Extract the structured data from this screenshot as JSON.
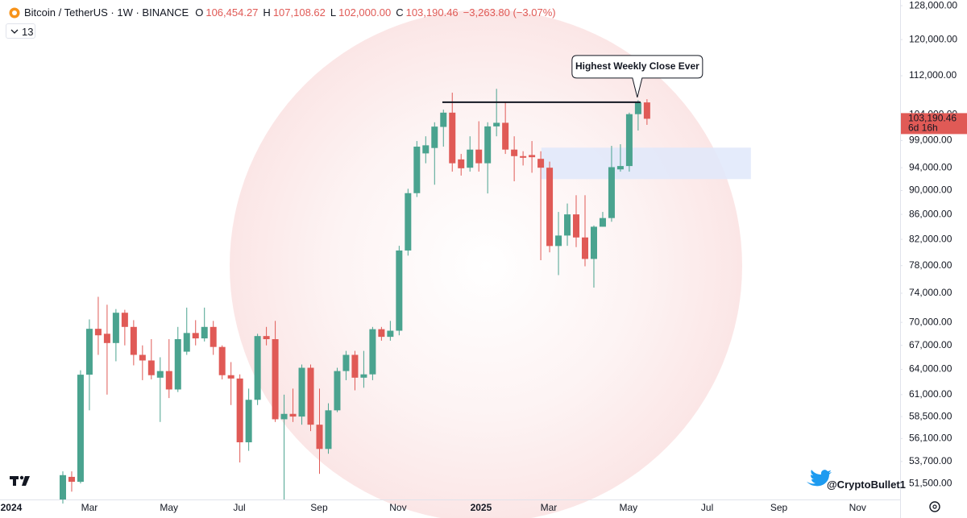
{
  "chart_data": {
    "type": "candlestick",
    "symbol_label": "Bitcoin / TetherUS · 1W · BINANCE",
    "ohlc_labels": [
      {
        "key": "O",
        "value": "106,454.27"
      },
      {
        "key": "H",
        "value": "107,108.62"
      },
      {
        "key": "L",
        "value": "102,000.00"
      },
      {
        "key": "C",
        "value": "103,190.46"
      }
    ],
    "change_label": "−3,263.80 (−3.07%)",
    "indicators_count": 13,
    "up_color": "#4aa38f",
    "down_color": "#e05a56",
    "open": [
      49950,
      52150,
      51660,
      63360,
      69150,
      68500,
      67300,
      71300,
      69400,
      65800,
      65100,
      63000,
      63800,
      61600,
      66200,
      68600,
      67900,
      69400,
      66800,
      63300,
      62900,
      55700,
      60400,
      68200,
      67800,
      58200,
      58800,
      58500,
      64200,
      57600,
      55000,
      59200,
      63800,
      65800,
      63000,
      63400,
      69100,
      68100,
      68900,
      80280,
      89550,
      96600,
      97600,
      101600,
      104400,
      95500,
      94000,
      97300,
      94800,
      101700,
      102400,
      97300,
      96100,
      96300,
      95600,
      94000,
      80970,
      82600,
      86000,
      82300,
      79000,
      84000,
      85400,
      93700,
      94300,
      104100,
      106454.27
    ],
    "high": [
      52700,
      52700,
      63900,
      70400,
      73500,
      72400,
      71800,
      71700,
      70300,
      67000,
      67800,
      65500,
      67800,
      69400,
      72000,
      70300,
      72000,
      70200,
      67000,
      64900,
      63400,
      61700,
      68500,
      69400,
      70200,
      61000,
      61700,
      64600,
      64600,
      61700,
      60000,
      64200,
      66300,
      66300,
      66300,
      69400,
      69400,
      70200,
      81000,
      90300,
      98900,
      99800,
      102500,
      105000,
      108450,
      96500,
      99800,
      102700,
      102500,
      109250,
      106400,
      99800,
      97000,
      98900,
      97000,
      95100,
      86400,
      87800,
      89200,
      89200,
      84200,
      86400,
      98000,
      98300,
      104400,
      106900,
      107108.62
    ],
    "low": [
      49560,
      50700,
      51500,
      59200,
      65800,
      61000,
      65000,
      67000,
      64500,
      62700,
      62800,
      57900,
      60600,
      61300,
      65800,
      67000,
      67500,
      65800,
      62800,
      59800,
      53600,
      54800,
      59800,
      67000,
      57900,
      49950,
      57900,
      57600,
      56900,
      52450,
      54500,
      59000,
      62700,
      61500,
      61800,
      62700,
      67600,
      67600,
      68300,
      79500,
      88900,
      94800,
      91000,
      97850,
      93300,
      92600,
      93300,
      93300,
      89500,
      99800,
      96500,
      91600,
      94400,
      93100,
      78800,
      80000,
      76600,
      81000,
      80800,
      77900,
      74800,
      84000,
      84800,
      93300,
      93300,
      100900,
      102000
    ],
    "close": [
      52320,
      51660,
      63360,
      69150,
      68300,
      67300,
      71300,
      69400,
      65800,
      65100,
      63300,
      63800,
      61600,
      67800,
      68600,
      67900,
      69400,
      66800,
      63300,
      62900,
      55700,
      60400,
      68200,
      67800,
      58200,
      58800,
      58500,
      64200,
      57600,
      55000,
      59200,
      63800,
      65800,
      63000,
      63400,
      69100,
      68100,
      68900,
      80280,
      89550,
      97850,
      98100,
      101660,
      104400,
      94800,
      93900,
      97300,
      94800,
      101700,
      102400,
      97300,
      96100,
      95800,
      95900,
      94000,
      80970,
      82600,
      86000,
      82300,
      79000,
      84000,
      85400,
      94100,
      94300,
      104100,
      106450,
      103190.46
    ],
    "yscale": "log",
    "ylim": [
      49950,
      129400
    ],
    "yticks": [
      {
        "value": 51500,
        "label": "51,500.00"
      },
      {
        "value": 53700,
        "label": "53,700.00"
      },
      {
        "value": 56100,
        "label": "56,100.00"
      },
      {
        "value": 58500,
        "label": "58,500.00"
      },
      {
        "value": 61000,
        "label": "61,000.00"
      },
      {
        "value": 64000,
        "label": "64,000.00"
      },
      {
        "value": 67000,
        "label": "67,000.00"
      },
      {
        "value": 70000,
        "label": "70,000.00"
      },
      {
        "value": 74000,
        "label": "74,000.00"
      },
      {
        "value": 78000,
        "label": "78,000.00"
      },
      {
        "value": 82000,
        "label": "82,000.00"
      },
      {
        "value": 86000,
        "label": "86,000.00"
      },
      {
        "value": 90000,
        "label": "90,000.00"
      },
      {
        "value": 94000,
        "label": "94,000.00"
      },
      {
        "value": 99000,
        "label": "99,000.00"
      },
      {
        "value": 104000,
        "label": "104,000.00"
      },
      {
        "value": 112000,
        "label": "112,000.00"
      },
      {
        "value": 120000,
        "label": "120,000.00"
      },
      {
        "value": 128000,
        "label": "128,000.00"
      }
    ],
    "xlim": [
      -7.1,
      94.6
    ],
    "xticks": [
      {
        "value": -5.83,
        "label": "2024"
      },
      {
        "value": 3.0,
        "label": "Mar"
      },
      {
        "value": 11.99,
        "label": "May"
      },
      {
        "value": 19.94,
        "label": "Jul"
      },
      {
        "value": 28.95,
        "label": "Sep"
      },
      {
        "value": 37.87,
        "label": "Nov"
      },
      {
        "value": 47.25,
        "label": "2025"
      },
      {
        "value": 54.9,
        "label": "Mar"
      },
      {
        "value": 63.9,
        "label": "May"
      },
      {
        "value": 72.8,
        "label": "Jul"
      },
      {
        "value": 80.9,
        "label": "Sep"
      },
      {
        "value": 89.8,
        "label": "Nov"
      }
    ],
    "bold_xticks": [
      0,
      6
    ],
    "grid": false,
    "zone": {
      "low": 91980,
      "high": 97660,
      "x": [
        54.07,
        77.74
      ],
      "color": "#dfe8fa"
    },
    "level": {
      "value": 106500,
      "x": [
        42.88,
        65.27
      ],
      "color": "#131722"
    },
    "annotation": "Highest Weekly Close Ever",
    "last_price_label": "103,190.46",
    "countdown_label": "6d 16h",
    "watermark": "@CryptoBullet1"
  }
}
